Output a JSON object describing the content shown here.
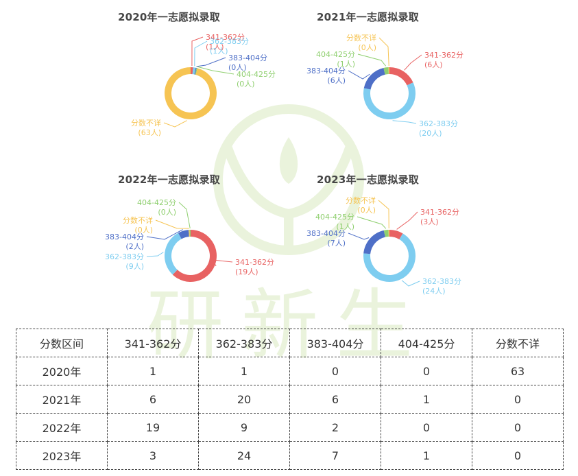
{
  "colors": {
    "341-362": "#e86262",
    "362-383": "#7ecdf0",
    "383-404": "#4e6fc7",
    "404-425": "#8fcf6f",
    "unknown": "#f6c453",
    "watermark": "#eaf3dc"
  },
  "watermark_text": "研新生",
  "chart_data": [
    {
      "type": "pie",
      "title": "2020年一志愿拟录取",
      "slices": [
        {
          "key": "341-362",
          "label": "341-362分",
          "count_label": "(1人)",
          "value": 1
        },
        {
          "key": "362-383",
          "label": "362-383分",
          "count_label": "(1人)",
          "value": 1
        },
        {
          "key": "383-404",
          "label": "383-404分",
          "count_label": "(0人)",
          "value": 0
        },
        {
          "key": "404-425",
          "label": "404-425分",
          "count_label": "(0人)",
          "value": 0
        },
        {
          "key": "unknown",
          "label": "分数不详",
          "count_label": "(63人)",
          "value": 63
        }
      ]
    },
    {
      "type": "pie",
      "title": "2021年一志愿拟录取",
      "slices": [
        {
          "key": "341-362",
          "label": "341-362分",
          "count_label": "(6人)",
          "value": 6
        },
        {
          "key": "362-383",
          "label": "362-383分",
          "count_label": "(20人)",
          "value": 20
        },
        {
          "key": "383-404",
          "label": "383-404分",
          "count_label": "(6人)",
          "value": 6
        },
        {
          "key": "404-425",
          "label": "404-425分",
          "count_label": "(1人)",
          "value": 1
        },
        {
          "key": "unknown",
          "label": "分数不详",
          "count_label": "(0人)",
          "value": 0
        }
      ]
    },
    {
      "type": "pie",
      "title": "2022年一志愿拟录取",
      "slices": [
        {
          "key": "341-362",
          "label": "341-362分",
          "count_label": "(19人)",
          "value": 19
        },
        {
          "key": "362-383",
          "label": "362-383分",
          "count_label": "(9人)",
          "value": 9
        },
        {
          "key": "383-404",
          "label": "383-404分",
          "count_label": "(2人)",
          "value": 2
        },
        {
          "key": "unknown",
          "label": "分数不详",
          "count_label": "(0人)",
          "value": 0
        },
        {
          "key": "404-425",
          "label": "404-425分",
          "count_label": "(0人)",
          "value": 0
        }
      ]
    },
    {
      "type": "pie",
      "title": "2023年一志愿拟录取",
      "slices": [
        {
          "key": "341-362",
          "label": "341-362分",
          "count_label": "(3人)",
          "value": 3
        },
        {
          "key": "362-383",
          "label": "362-383分",
          "count_label": "(24人)",
          "value": 24
        },
        {
          "key": "383-404",
          "label": "383-404分",
          "count_label": "(7人)",
          "value": 7
        },
        {
          "key": "404-425",
          "label": "404-425分",
          "count_label": "(1人)",
          "value": 1
        },
        {
          "key": "unknown",
          "label": "分数不详",
          "count_label": "(0人)",
          "value": 0
        }
      ]
    },
    {
      "type": "table",
      "columns": [
        "分数区间",
        "341-362分",
        "362-383分",
        "383-404分",
        "404-425分",
        "分数不详"
      ],
      "rows": [
        [
          "2020年",
          "1",
          "1",
          "0",
          "0",
          "63"
        ],
        [
          "2021年",
          "6",
          "20",
          "6",
          "1",
          "0"
        ],
        [
          "2022年",
          "19",
          "9",
          "2",
          "0",
          "0"
        ],
        [
          "2023年",
          "3",
          "24",
          "7",
          "1",
          "0"
        ]
      ]
    }
  ]
}
